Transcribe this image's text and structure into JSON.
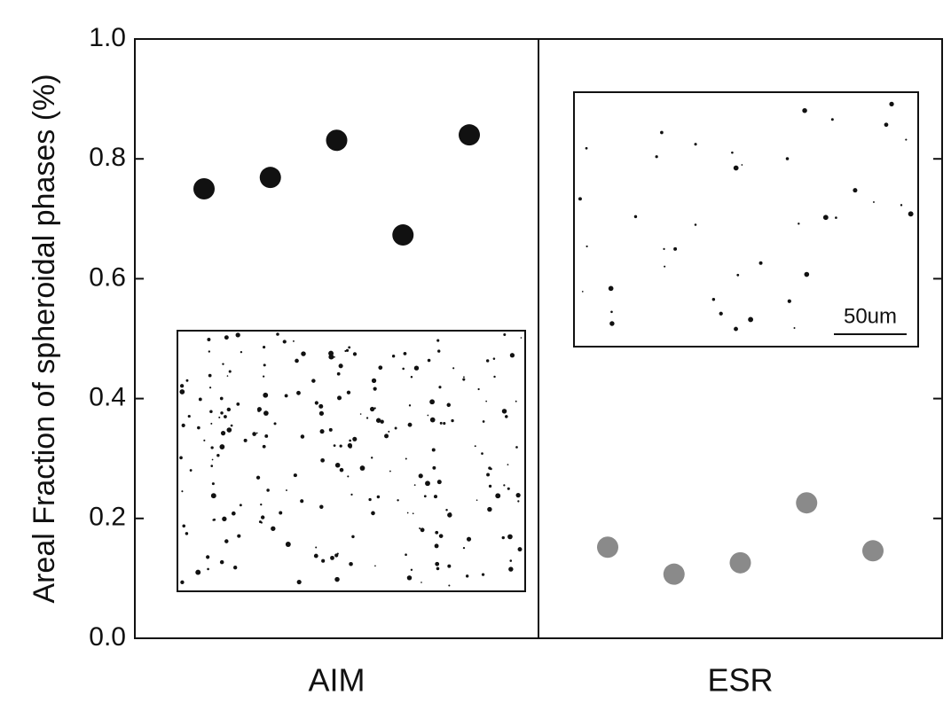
{
  "chart_data": {
    "type": "scatter",
    "ylabel": "Areal Fraction of spheroidal phases (%)",
    "categories": [
      "AIM",
      "ESR"
    ],
    "series": [
      {
        "color": "#111111",
        "values": [
          0.75,
          0.769,
          0.831,
          0.673,
          0.84
        ]
      },
      {
        "color": "#8a8a8a",
        "values": [
          0.152,
          0.107,
          0.126,
          0.226,
          0.146
        ]
      }
    ],
    "ylim": [
      0,
      1.0
    ],
    "yticks": [
      {
        "value": 0,
        "label": "0.0"
      },
      0.2,
      0.4,
      0.6,
      0.8,
      {
        "value": 1.0,
        "label": "1.0"
      }
    ],
    "annotation": "50um"
  }
}
